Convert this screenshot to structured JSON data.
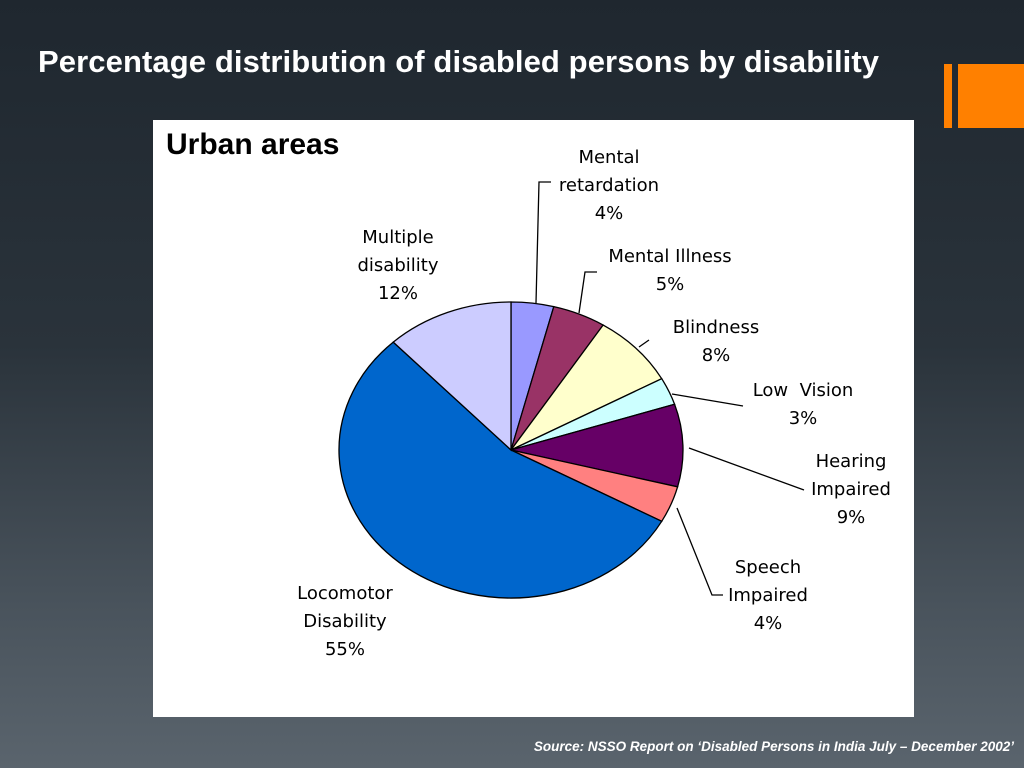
{
  "slide": {
    "title": "Percentage distribution of disabled persons by disability",
    "source": "Source: NSSO Report on ‘Disabled Persons in India July – December 2002’"
  },
  "colors": {
    "accent": "#ff8000",
    "background": "#222b33",
    "panel": "#ffffff"
  },
  "chart_data": {
    "type": "pie",
    "title": "Urban areas",
    "start_angle_deg": 0,
    "direction": "clockwise",
    "slices": [
      {
        "label": "Mental retardation",
        "label_lines": [
          "Mental",
          "retardation"
        ],
        "pct_label": "4%",
        "value": 4,
        "color": "#9999ff"
      },
      {
        "label": "Mental Illness",
        "label_lines": [
          "Mental Illness"
        ],
        "pct_label": "5%",
        "value": 5,
        "color": "#993366"
      },
      {
        "label": "Blindness",
        "label_lines": [
          "Blindness"
        ],
        "pct_label": "8%",
        "value": 8,
        "color": "#ffffcc"
      },
      {
        "label": "Low Vision",
        "label_lines": [
          "Low  Vision"
        ],
        "pct_label": "3%",
        "value": 3,
        "color": "#ccffff"
      },
      {
        "label": "Hearing Impaired",
        "label_lines": [
          "Hearing",
          "Impaired"
        ],
        "pct_label": "9%",
        "value": 9,
        "color": "#660066"
      },
      {
        "label": "Speech Impaired",
        "label_lines": [
          "Speech",
          "Impaired"
        ],
        "pct_label": "4%",
        "value": 4,
        "color": "#ff8080"
      },
      {
        "label": "Locomotor Disability",
        "label_lines": [
          "Locomotor",
          "Disability"
        ],
        "pct_label": "55%",
        "value": 55,
        "color": "#0066cc"
      },
      {
        "label": "Multiple disability",
        "label_lines": [
          "Multiple",
          "disability"
        ],
        "pct_label": "12%",
        "value": 12,
        "color": "#ccccff"
      }
    ]
  }
}
